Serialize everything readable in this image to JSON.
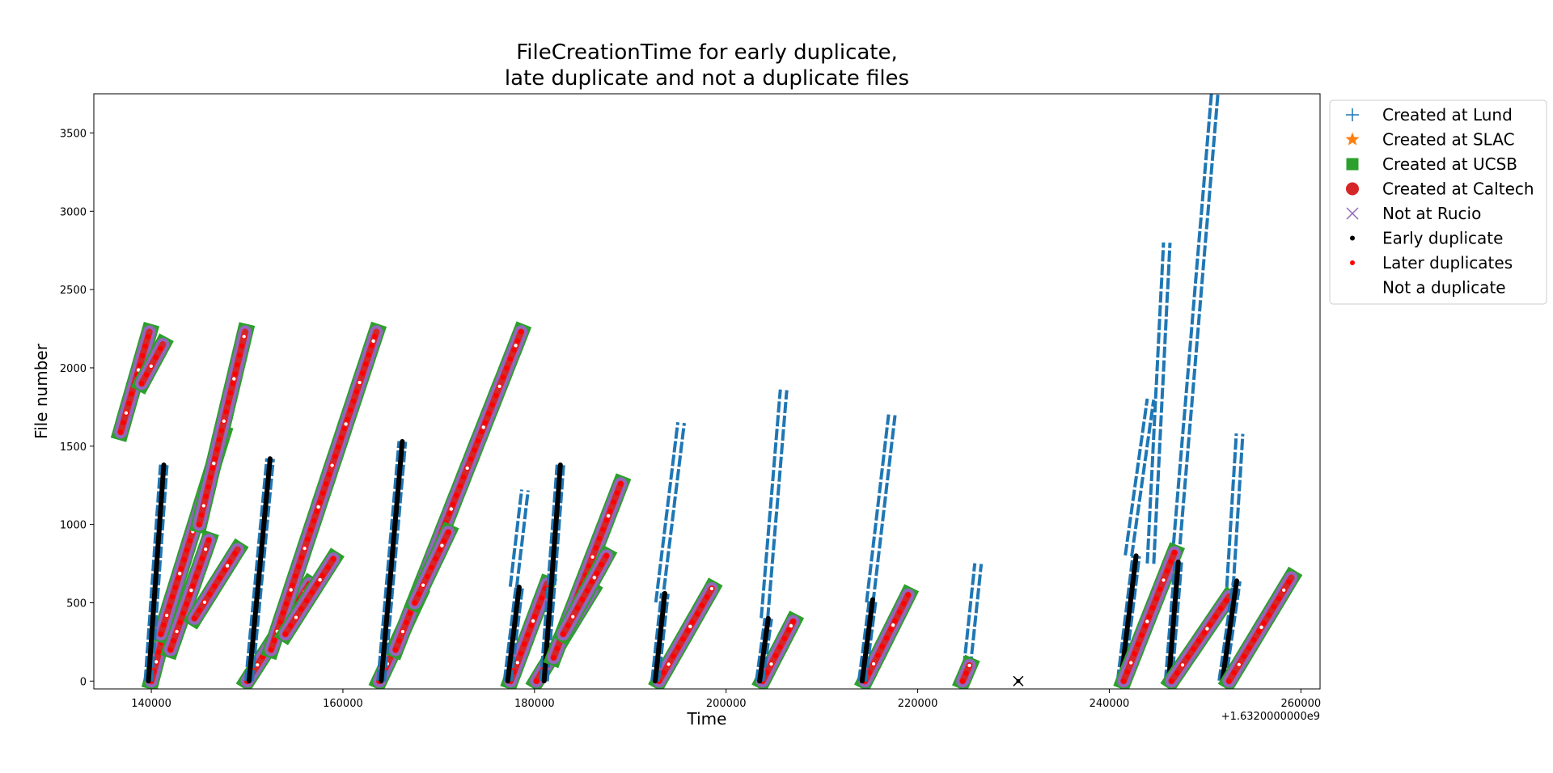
{
  "chart_data": {
    "type": "scatter",
    "title_lines": [
      "FileCreationTime for early duplicate,",
      "late duplicate and not a duplicate files"
    ],
    "xlabel": "Time",
    "ylabel": "File number",
    "x_offset_label": "+1.6320000000e9",
    "xlim": [
      134000,
      262000
    ],
    "ylim": [
      -50,
      3750
    ],
    "xticks": [
      140000,
      160000,
      180000,
      200000,
      220000,
      240000,
      260000
    ],
    "xtick_labels": [
      "140000",
      "160000",
      "180000",
      "200000",
      "220000",
      "240000",
      "260000"
    ],
    "yticks": [
      0,
      500,
      1000,
      1500,
      2000,
      2500,
      3000,
      3500
    ],
    "ytick_labels": [
      "0",
      "500",
      "1000",
      "1500",
      "2000",
      "2500",
      "3000",
      "3500"
    ],
    "legend_position": "outside-right",
    "legend": [
      {
        "label": "Created at Lund",
        "marker": "plus",
        "color": "#1f77b4"
      },
      {
        "label": "Created at SLAC",
        "marker": "star",
        "color": "#ff7f0e"
      },
      {
        "label": "Created at UCSB",
        "marker": "square",
        "color": "#2ca02c"
      },
      {
        "label": "Created at Caltech",
        "marker": "circle",
        "color": "#d62728"
      },
      {
        "label": "Not at Rucio",
        "marker": "x",
        "color": "#9467bd"
      },
      {
        "label": "Early duplicate",
        "marker": "dot",
        "color": "#000000"
      },
      {
        "label": "Later duplicates",
        "marker": "dot",
        "color": "#ff0000"
      },
      {
        "label": "Not a duplicate",
        "marker": "dot",
        "color": "#ffffff"
      }
    ],
    "series": [
      {
        "site": "UCSB",
        "status": "later",
        "x0": 136800,
        "y0": 1590,
        "x1": 139800,
        "y1": 2230
      },
      {
        "site": "UCSB",
        "status": "later",
        "x0": 139000,
        "y0": 1900,
        "x1": 141200,
        "y1": 2150
      },
      {
        "site": "UCSB",
        "status": "later",
        "x0": 140000,
        "y0": 0,
        "x1": 141700,
        "y1": 400
      },
      {
        "site": "UCSB",
        "status": "later",
        "x0": 141000,
        "y0": 300,
        "x1": 147500,
        "y1": 1580
      },
      {
        "site": "UCSB",
        "status": "later",
        "x0": 142000,
        "y0": 200,
        "x1": 146000,
        "y1": 900
      },
      {
        "site": "UCSB",
        "status": "later",
        "x0": 144500,
        "y0": 400,
        "x1": 149000,
        "y1": 840
      },
      {
        "site": "UCSB",
        "status": "later",
        "x0": 145000,
        "y0": 1000,
        "x1": 149800,
        "y1": 2230
      },
      {
        "site": "Lund",
        "status": "early",
        "x0": 139700,
        "y0": 0,
        "x1": 141300,
        "y1": 1380
      },
      {
        "site": "UCSB",
        "status": "later",
        "x0": 150000,
        "y0": 0,
        "x1": 156500,
        "y1": 620
      },
      {
        "site": "UCSB",
        "status": "later",
        "x0": 152500,
        "y0": 200,
        "x1": 163500,
        "y1": 2230
      },
      {
        "site": "UCSB",
        "status": "later",
        "x0": 154000,
        "y0": 300,
        "x1": 159000,
        "y1": 780
      },
      {
        "site": "Lund",
        "status": "early",
        "x0": 150200,
        "y0": 0,
        "x1": 152400,
        "y1": 1420
      },
      {
        "site": "UCSB",
        "status": "later",
        "x0": 163800,
        "y0": 0,
        "x1": 168000,
        "y1": 550
      },
      {
        "site": "UCSB",
        "status": "later",
        "x0": 165500,
        "y0": 200,
        "x1": 178600,
        "y1": 2230
      },
      {
        "site": "UCSB",
        "status": "later",
        "x0": 167500,
        "y0": 500,
        "x1": 171000,
        "y1": 950
      },
      {
        "site": "Lund",
        "status": "early",
        "x0": 164000,
        "y0": 0,
        "x1": 166200,
        "y1": 1530
      },
      {
        "site": "Lund",
        "status": "not",
        "x0": 177800,
        "y0": 600,
        "x1": 179000,
        "y1": 1220
      },
      {
        "site": "UCSB",
        "status": "later",
        "x0": 177500,
        "y0": 0,
        "x1": 181300,
        "y1": 620
      },
      {
        "site": "Lund",
        "status": "early",
        "x0": 177200,
        "y0": 0,
        "x1": 178400,
        "y1": 600
      },
      {
        "site": "UCSB",
        "status": "later",
        "x0": 180200,
        "y0": 0,
        "x1": 186000,
        "y1": 580
      },
      {
        "site": "Lund",
        "status": "early",
        "x0": 181000,
        "y0": 0,
        "x1": 182700,
        "y1": 1380
      },
      {
        "site": "UCSB",
        "status": "later",
        "x0": 182000,
        "y0": 150,
        "x1": 189000,
        "y1": 1260
      },
      {
        "site": "UCSB",
        "status": "later",
        "x0": 183000,
        "y0": 300,
        "x1": 187500,
        "y1": 800
      },
      {
        "site": "Lund",
        "status": "not",
        "x0": 193000,
        "y0": 500,
        "x1": 195300,
        "y1": 1650
      },
      {
        "site": "UCSB",
        "status": "later",
        "x0": 193000,
        "y0": 0,
        "x1": 198500,
        "y1": 590
      },
      {
        "site": "Lund",
        "status": "early",
        "x0": 192600,
        "y0": 0,
        "x1": 193600,
        "y1": 560
      },
      {
        "site": "Lund",
        "status": "not",
        "x0": 204000,
        "y0": 400,
        "x1": 206000,
        "y1": 1860
      },
      {
        "site": "UCSB",
        "status": "later",
        "x0": 203800,
        "y0": 0,
        "x1": 207000,
        "y1": 380
      },
      {
        "site": "Lund",
        "status": "early",
        "x0": 203500,
        "y0": 0,
        "x1": 204400,
        "y1": 400
      },
      {
        "site": "Lund",
        "status": "not",
        "x0": 215000,
        "y0": 500,
        "x1": 217300,
        "y1": 1700
      },
      {
        "site": "UCSB",
        "status": "later",
        "x0": 214500,
        "y0": 0,
        "x1": 219000,
        "y1": 550
      },
      {
        "site": "Lund",
        "status": "early",
        "x0": 214200,
        "y0": 0,
        "x1": 215300,
        "y1": 520
      },
      {
        "site": "Lund",
        "status": "not",
        "x0": 225000,
        "y0": 0,
        "x1": 226300,
        "y1": 750
      },
      {
        "site": "UCSB",
        "status": "later",
        "x0": 224700,
        "y0": 0,
        "x1": 225400,
        "y1": 100
      },
      {
        "site": "Lund",
        "status": "not",
        "x0": 242000,
        "y0": 800,
        "x1": 244300,
        "y1": 1800
      },
      {
        "site": "Lund",
        "status": "not",
        "x0": 244300,
        "y0": 750,
        "x1": 246000,
        "y1": 2800
      },
      {
        "site": "Lund",
        "status": "not",
        "x0": 246800,
        "y0": 700,
        "x1": 251000,
        "y1": 3750
      },
      {
        "site": "Lund",
        "status": "early",
        "x0": 241200,
        "y0": 0,
        "x1": 242800,
        "y1": 800
      },
      {
        "site": "UCSB",
        "status": "later",
        "x0": 241500,
        "y0": 0,
        "x1": 246800,
        "y1": 820
      },
      {
        "site": "Lund",
        "status": "early",
        "x0": 246200,
        "y0": 0,
        "x1": 247200,
        "y1": 760
      },
      {
        "site": "UCSB",
        "status": "later",
        "x0": 246500,
        "y0": 0,
        "x1": 252500,
        "y1": 540
      },
      {
        "site": "Lund",
        "status": "not",
        "x0": 252600,
        "y0": 600,
        "x1": 253600,
        "y1": 1580
      },
      {
        "site": "Lund",
        "status": "early",
        "x0": 251800,
        "y0": 0,
        "x1": 253300,
        "y1": 640
      },
      {
        "site": "UCSB",
        "status": "later",
        "x0": 252500,
        "y0": 0,
        "x1": 259000,
        "y1": 660
      },
      {
        "site": "Lund",
        "status": "none",
        "x0": 230500,
        "y0": 0,
        "x1": 230500,
        "y1": 0
      }
    ]
  }
}
